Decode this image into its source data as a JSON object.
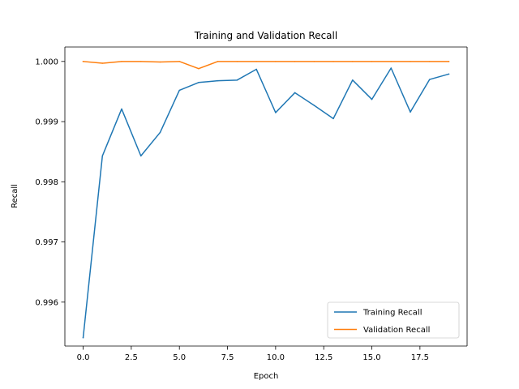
{
  "chart_data": {
    "type": "line",
    "title": "Training and Validation Recall",
    "xlabel": "Epoch",
    "ylabel": "Recall",
    "xlim": [
      -0.95,
      19.95
    ],
    "ylim": [
      0.99527,
      1.00024
    ],
    "x_ticks": [
      0,
      2.5,
      5,
      7.5,
      10,
      12.5,
      15,
      17.5
    ],
    "x_tick_labels": [
      "0.0",
      "2.5",
      "5.0",
      "7.5",
      "10.0",
      "12.5",
      "15.0",
      "17.5"
    ],
    "y_ticks": [
      0.996,
      0.997,
      0.998,
      0.999,
      1.0
    ],
    "y_tick_labels": [
      "0.996",
      "0.997",
      "0.998",
      "0.999",
      "1.000"
    ],
    "grid": false,
    "legend_position": "lower-right",
    "x": [
      0,
      1,
      2,
      3,
      4,
      5,
      6,
      7,
      8,
      9,
      10,
      11,
      12,
      13,
      14,
      15,
      16,
      17,
      18,
      19
    ],
    "series": [
      {
        "name": "Training Recall",
        "color": "#1f77b4",
        "values": [
          0.99541,
          0.99843,
          0.99921,
          0.99843,
          0.99882,
          0.99952,
          0.99965,
          0.99968,
          0.99969,
          0.99987,
          0.99915,
          0.99948,
          0.99927,
          0.99905,
          0.99969,
          0.99937,
          0.99989,
          0.99916,
          0.9997,
          0.99979
        ]
      },
      {
        "name": "Validation Recall",
        "color": "#ff7f0e",
        "values": [
          1.0,
          0.99997,
          1.0,
          1.0,
          0.99999,
          1.0,
          0.99988,
          1.0,
          1.0,
          1.0,
          1.0,
          1.0,
          1.0,
          1.0,
          1.0,
          1.0,
          1.0,
          1.0,
          1.0,
          1.0
        ]
      }
    ]
  }
}
